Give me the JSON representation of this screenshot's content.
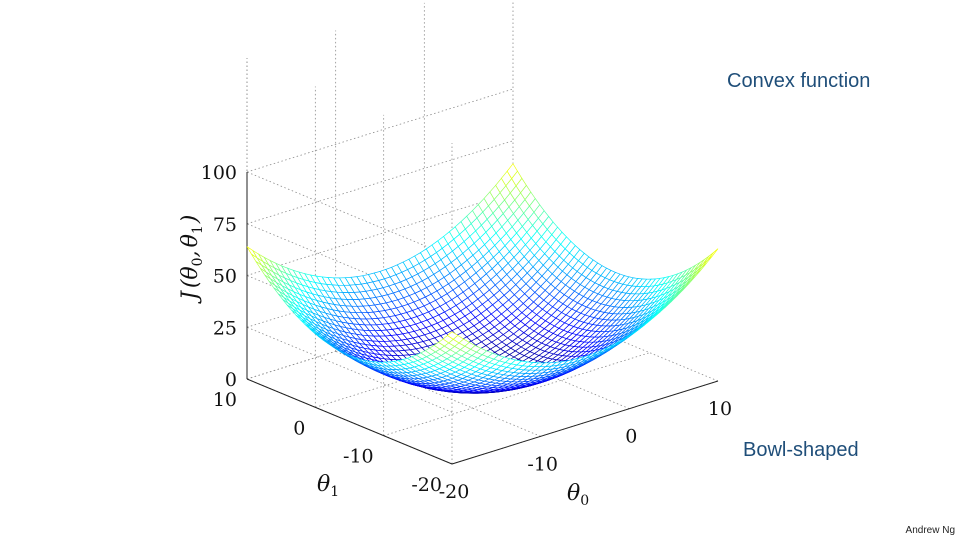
{
  "annotations": {
    "convex": "Convex function",
    "bowl": "Bowl-shaped",
    "credit": "Andrew Ng"
  },
  "colors": {
    "annotation": "#1f4e79",
    "colormap": "jet",
    "background": "#ffffff"
  },
  "chart_data": {
    "type": "surface",
    "surface_formula": "J(theta0, theta1) = 0.142 * (theta0 + 5)^2 + 0.142 * (theta1 + 5)^2",
    "x": {
      "ticks": [
        -20,
        -10,
        0,
        10
      ],
      "tick_labels": [
        "-20",
        "-10",
        "0",
        "10"
      ],
      "range": [
        -20,
        10
      ]
    },
    "y": {
      "ticks": [
        -20,
        -10,
        0,
        10
      ],
      "tick_labels": [
        "-20",
        "-10",
        "0",
        "10"
      ],
      "range": [
        -20,
        10
      ]
    },
    "z": {
      "ticks": [
        0,
        25,
        50,
        75,
        100
      ],
      "tick_labels": [
        "0",
        "25",
        "50",
        "75",
        "100"
      ],
      "range": [
        0,
        100
      ]
    },
    "xlabel": {
      "base": "θ",
      "sub": "0"
    },
    "ylabel": {
      "base": "θ",
      "sub": "1"
    },
    "zlabel": {
      "base": "J",
      "open": "(",
      "a": "θ",
      "a_sub": "0",
      "sep": ",",
      "b": "θ",
      "b_sub": "1",
      "close": ")"
    },
    "mesh_samples": 46,
    "grid": true
  }
}
